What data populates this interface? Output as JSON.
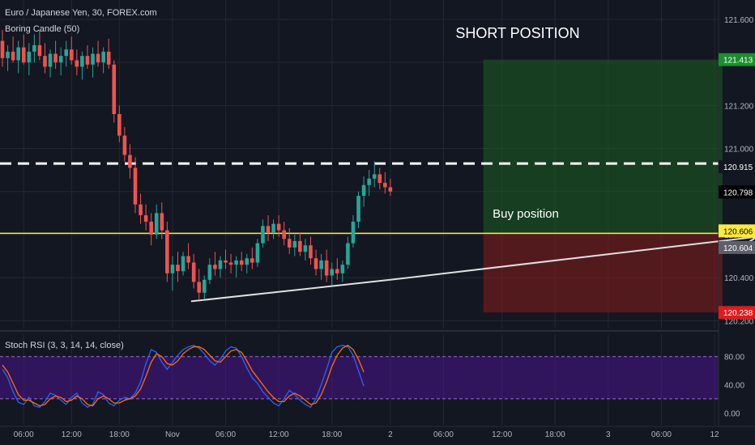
{
  "header": {
    "symbol_line": "Euro / Japanese Yen, 30, FOREX.com",
    "indicator_line": "Boring Candle (50)",
    "oscillator_line": "Stoch RSI (3, 3, 14, 14, close)"
  },
  "annotations": {
    "short_position": "SHORT POSITION",
    "buy_position": "Buy position"
  },
  "colors": {
    "background": "#131722",
    "grid": "#242833",
    "bull": "#26a69a",
    "bear": "#ef5350",
    "target_zone": "#1b5e20",
    "stop_zone": "#7f1d1d",
    "level_line": "#ffeb3b",
    "dashed_line": "#ffffff",
    "trend_line": "#e0e0e0",
    "rsi_band": "#4a148c",
    "k_line": "#2962ff",
    "d_line": "#ff6d00"
  },
  "chart_data": [
    {
      "type": "candlestick",
      "title": "Euro / Japanese Yen, 30, FOREX.com",
      "x_ticks": [
        "06:00",
        "12:00",
        "18:00",
        "Nov",
        "06:00",
        "12:00",
        "18:00",
        "2",
        "06:00",
        "12:00",
        "18:00",
        "3",
        "06:00",
        "12"
      ],
      "y_ticks": [
        "121.600",
        "121.400",
        "121.200",
        "121.000",
        "120.800",
        "120.600",
        "120.400",
        "120.200"
      ],
      "ylim": [
        120.19,
        121.66
      ],
      "price_labels": [
        {
          "value": 121.413,
          "text": "121.413",
          "role": "target"
        },
        {
          "value": 120.915,
          "text": "120.915",
          "role": "entry"
        },
        {
          "value": 120.798,
          "text": "120.798",
          "role": "last"
        },
        {
          "value": 120.606,
          "text": "120.606",
          "role": "level"
        },
        {
          "value": 120.604,
          "text": "120.604",
          "role": "cursor"
        },
        {
          "value": 120.238,
          "text": "120.238",
          "role": "stop"
        }
      ],
      "levels": {
        "dashed": 120.93,
        "horizontal": 120.606
      },
      "position_box": {
        "x_start": 90.5,
        "x_end": 135.5,
        "top": 121.413,
        "mid": 120.606,
        "bottom": 120.238
      },
      "trend_line": {
        "x1": 35.5,
        "y1": 120.29,
        "x2": 73,
        "y2": 120.39
      },
      "arrow": {
        "x1": 73,
        "y1": 120.39,
        "x2": 142,
        "y2": 120.59
      },
      "candles": [
        [
          121.5,
          121.55,
          121.38,
          121.42
        ],
        [
          121.42,
          121.48,
          121.36,
          121.45
        ],
        [
          121.45,
          121.52,
          121.4,
          121.41
        ],
        [
          121.41,
          121.5,
          121.35,
          121.47
        ],
        [
          121.47,
          121.53,
          121.39,
          121.4
        ],
        [
          121.4,
          121.49,
          121.34,
          121.45
        ],
        [
          121.45,
          121.53,
          121.4,
          121.48
        ],
        [
          121.48,
          121.55,
          121.41,
          121.43
        ],
        [
          121.43,
          121.49,
          121.35,
          121.38
        ],
        [
          121.38,
          121.46,
          121.33,
          121.44
        ],
        [
          121.44,
          121.5,
          121.37,
          121.4
        ],
        [
          121.4,
          121.47,
          121.34,
          121.43
        ],
        [
          121.43,
          121.5,
          121.38,
          121.46
        ],
        [
          121.46,
          121.52,
          121.39,
          121.41
        ],
        [
          121.41,
          121.46,
          121.34,
          121.38
        ],
        [
          121.38,
          121.45,
          121.32,
          121.43
        ],
        [
          121.43,
          121.48,
          121.37,
          121.39
        ],
        [
          121.39,
          121.47,
          121.33,
          121.44
        ],
        [
          121.44,
          121.5,
          121.38,
          121.4
        ],
        [
          121.4,
          121.47,
          121.35,
          121.45
        ],
        [
          121.45,
          121.51,
          121.37,
          121.39
        ],
        [
          121.39,
          121.41,
          121.12,
          121.16
        ],
        [
          121.16,
          121.2,
          121.03,
          121.06
        ],
        [
          121.06,
          121.1,
          120.94,
          120.97
        ],
        [
          120.97,
          121.02,
          120.86,
          120.91
        ],
        [
          120.91,
          120.96,
          120.7,
          120.74
        ],
        [
          120.74,
          120.79,
          120.65,
          120.69
        ],
        [
          120.69,
          120.74,
          120.62,
          120.66
        ],
        [
          120.66,
          120.7,
          120.55,
          120.6
        ],
        [
          120.6,
          120.74,
          120.58,
          120.7
        ],
        [
          120.7,
          120.75,
          120.58,
          120.62
        ],
        [
          120.62,
          120.66,
          120.38,
          120.42
        ],
        [
          120.42,
          120.5,
          120.34,
          120.46
        ],
        [
          120.46,
          120.52,
          120.38,
          120.43
        ],
        [
          120.43,
          120.52,
          120.41,
          120.5
        ],
        [
          120.5,
          120.56,
          120.44,
          120.47
        ],
        [
          120.47,
          120.51,
          120.35,
          120.38
        ],
        [
          120.38,
          120.44,
          120.3,
          120.33
        ],
        [
          120.33,
          120.41,
          120.3,
          120.39
        ],
        [
          120.39,
          120.49,
          120.37,
          120.46
        ],
        [
          120.46,
          120.52,
          120.41,
          120.44
        ],
        [
          120.44,
          120.5,
          120.4,
          120.48
        ],
        [
          120.48,
          120.53,
          120.44,
          120.47
        ],
        [
          120.47,
          120.51,
          120.42,
          120.46
        ],
        [
          120.46,
          120.5,
          120.4,
          120.48
        ],
        [
          120.48,
          120.52,
          120.43,
          120.46
        ],
        [
          120.46,
          120.51,
          120.42,
          120.49
        ],
        [
          120.49,
          120.54,
          120.44,
          120.47
        ],
        [
          120.47,
          120.58,
          120.45,
          120.56
        ],
        [
          120.56,
          120.67,
          120.54,
          120.64
        ],
        [
          120.64,
          120.69,
          120.57,
          120.61
        ],
        [
          120.61,
          120.67,
          120.58,
          120.65
        ],
        [
          120.65,
          120.69,
          120.59,
          120.62
        ],
        [
          120.62,
          120.66,
          120.55,
          120.58
        ],
        [
          120.58,
          120.63,
          120.51,
          120.54
        ],
        [
          120.54,
          120.6,
          120.5,
          120.57
        ],
        [
          120.57,
          120.61,
          120.5,
          120.52
        ],
        [
          120.52,
          120.58,
          120.48,
          120.55
        ],
        [
          120.55,
          120.59,
          120.46,
          120.49
        ],
        [
          120.49,
          120.53,
          120.41,
          120.44
        ],
        [
          120.44,
          120.51,
          120.39,
          120.48
        ],
        [
          120.48,
          120.53,
          120.38,
          120.41
        ],
        [
          120.41,
          120.47,
          120.36,
          120.44
        ],
        [
          120.44,
          120.49,
          120.39,
          120.42
        ],
        [
          120.42,
          120.48,
          120.38,
          120.46
        ],
        [
          120.46,
          120.59,
          120.44,
          120.56
        ],
        [
          120.56,
          120.69,
          120.54,
          120.66
        ],
        [
          120.66,
          120.8,
          120.63,
          120.78
        ],
        [
          120.78,
          120.87,
          120.73,
          120.83
        ],
        [
          120.83,
          120.9,
          120.78,
          120.86
        ],
        [
          120.86,
          120.94,
          120.82,
          120.88
        ],
        [
          120.88,
          120.91,
          120.81,
          120.84
        ],
        [
          120.84,
          120.89,
          120.79,
          120.82
        ],
        [
          120.82,
          120.86,
          120.78,
          120.8
        ]
      ]
    },
    {
      "type": "line",
      "title": "Stoch RSI (3, 3, 14, 14, close)",
      "y_ticks": [
        "80.00",
        "40.00",
        "0.00"
      ],
      "ylim": [
        -10,
        105
      ],
      "bands": {
        "upper": 80,
        "lower": 20
      },
      "series": [
        {
          "role": "k",
          "values": [
            62,
            50,
            30,
            15,
            12,
            22,
            10,
            8,
            16,
            28,
            25,
            18,
            12,
            22,
            28,
            14,
            8,
            12,
            30,
            26,
            14,
            10,
            18,
            22,
            20,
            28,
            44,
            70,
            90,
            86,
            72,
            62,
            72,
            82,
            90,
            94,
            96,
            92,
            84,
            74,
            68,
            76,
            88,
            94,
            92,
            80,
            64,
            50,
            42,
            30,
            22,
            14,
            10,
            20,
            32,
            26,
            18,
            12,
            8,
            20,
            40,
            62,
            86,
            94,
            96,
            94,
            82,
            60,
            38
          ]
        },
        {
          "role": "d",
          "values": [
            68,
            58,
            42,
            26,
            18,
            18,
            14,
            10,
            12,
            20,
            24,
            22,
            16,
            18,
            24,
            20,
            12,
            10,
            20,
            24,
            20,
            14,
            14,
            18,
            20,
            24,
            34,
            52,
            72,
            84,
            80,
            70,
            68,
            74,
            84,
            90,
            94,
            94,
            90,
            82,
            74,
            72,
            80,
            88,
            90,
            86,
            74,
            60,
            50,
            40,
            30,
            22,
            16,
            16,
            24,
            28,
            24,
            18,
            12,
            14,
            26,
            44,
            66,
            82,
            92,
            96,
            90,
            76,
            58
          ]
        }
      ]
    }
  ]
}
